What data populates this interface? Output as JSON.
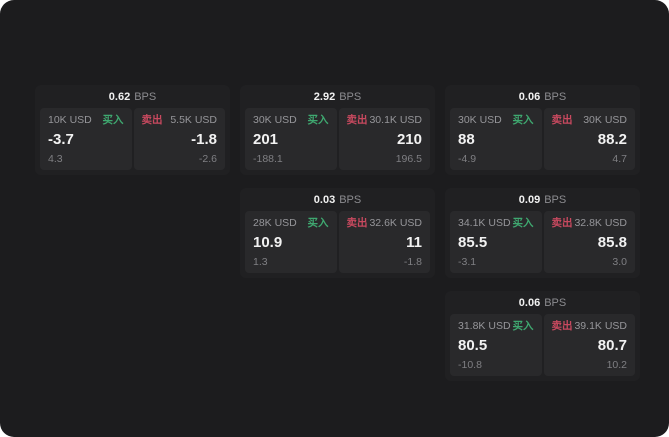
{
  "app": {
    "name": "bps-quote-board"
  },
  "labels": {
    "buy": "买入",
    "sell": "卖出",
    "bps_unit": "BPS"
  },
  "colors": {
    "surface": "#1c1c1e",
    "card": "#202022",
    "panel": "#29292b",
    "text_primary": "#f2f2f2",
    "text_muted": "#96969a",
    "text_dim": "#7f7f83",
    "buy_green": "#3fa870",
    "sell_red": "#c8495f"
  },
  "cards": [
    {
      "bps": "0.62",
      "buy": {
        "amount": "10K USD",
        "value": "-3.7",
        "sub": "4.3"
      },
      "sell": {
        "amount": "5.5K USD",
        "value": "-1.8",
        "sub": "-2.6"
      }
    },
    {
      "bps": "2.92",
      "buy": {
        "amount": "30K USD",
        "value": "201",
        "sub": "-188.1"
      },
      "sell": {
        "amount": "30.1K USD",
        "value": "210",
        "sub": "196.5"
      }
    },
    {
      "bps": "0.06",
      "buy": {
        "amount": "30K USD",
        "value": "88",
        "sub": "-4.9"
      },
      "sell": {
        "amount": "30K USD",
        "value": "88.2",
        "sub": "4.7"
      }
    },
    {
      "bps": "0.03",
      "buy": {
        "amount": "28K USD",
        "value": "10.9",
        "sub": "1.3"
      },
      "sell": {
        "amount": "32.6K USD",
        "value": "11",
        "sub": "-1.8"
      }
    },
    {
      "bps": "0.09",
      "buy": {
        "amount": "34.1K USD",
        "value": "85.5",
        "sub": "-3.1"
      },
      "sell": {
        "amount": "32.8K USD",
        "value": "85.8",
        "sub": "3.0"
      }
    },
    {
      "bps": "0.06",
      "buy": {
        "amount": "31.8K USD",
        "value": "80.5",
        "sub": "-10.8"
      },
      "sell": {
        "amount": "39.1K USD",
        "value": "80.7",
        "sub": "10.2"
      }
    }
  ]
}
